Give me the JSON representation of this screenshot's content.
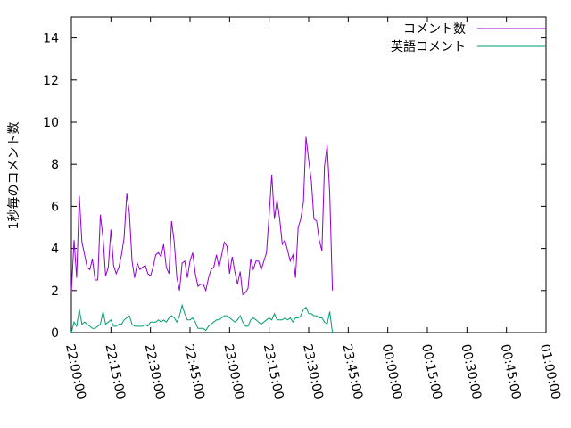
{
  "chart_data": {
    "type": "line",
    "title": "",
    "xlabel": "",
    "ylabel": "1秒毎のコメント数",
    "ylim": [
      0,
      15
    ],
    "xlim": [
      "22:00:00",
      "01:00:00"
    ],
    "grid": false,
    "legend_position": "top-right",
    "y_ticks": [
      "0",
      "2",
      "4",
      "6",
      "8",
      "10",
      "12",
      "14"
    ],
    "x_ticks": [
      "22:00:00",
      "22:15:00",
      "22:30:00",
      "22:45:00",
      "23:00:00",
      "23:15:00",
      "23:30:00",
      "23:45:00",
      "00:00:00",
      "00:15:00",
      "00:30:00",
      "00:45:00",
      "01:00:00"
    ],
    "series": [
      {
        "name": "コメント数",
        "color": "#9400d3",
        "points": [
          [
            "22:00:00",
            1.9
          ],
          [
            "22:01:00",
            4.4
          ],
          [
            "22:02:00",
            2.6
          ],
          [
            "22:03:00",
            6.5
          ],
          [
            "22:04:00",
            4.3
          ],
          [
            "22:05:00",
            3.7
          ],
          [
            "22:06:00",
            3.1
          ],
          [
            "22:07:00",
            3.0
          ],
          [
            "22:08:00",
            3.5
          ],
          [
            "22:09:00",
            2.5
          ],
          [
            "22:10:00",
            2.5
          ],
          [
            "22:11:00",
            5.6
          ],
          [
            "22:12:00",
            4.5
          ],
          [
            "22:13:00",
            2.7
          ],
          [
            "22:14:00",
            3.1
          ],
          [
            "22:15:00",
            4.9
          ],
          [
            "22:16:00",
            3.2
          ],
          [
            "22:17:00",
            2.8
          ],
          [
            "22:18:00",
            3.1
          ],
          [
            "22:19:00",
            3.7
          ],
          [
            "22:20:00",
            4.5
          ],
          [
            "22:21:00",
            6.6
          ],
          [
            "22:22:00",
            5.7
          ],
          [
            "22:23:00",
            3.4
          ],
          [
            "22:24:00",
            2.6
          ],
          [
            "22:25:00",
            3.3
          ],
          [
            "22:26:00",
            3.0
          ],
          [
            "22:27:00",
            3.1
          ],
          [
            "22:28:00",
            3.2
          ],
          [
            "22:29:00",
            2.8
          ],
          [
            "22:30:00",
            2.7
          ],
          [
            "22:31:00",
            3.1
          ],
          [
            "22:32:00",
            3.7
          ],
          [
            "22:33:00",
            3.8
          ],
          [
            "22:34:00",
            3.6
          ],
          [
            "22:35:00",
            4.2
          ],
          [
            "22:36:00",
            3.1
          ],
          [
            "22:37:00",
            2.8
          ],
          [
            "22:38:00",
            5.3
          ],
          [
            "22:39:00",
            4.3
          ],
          [
            "22:40:00",
            2.6
          ],
          [
            "22:41:00",
            2.0
          ],
          [
            "22:42:00",
            3.3
          ],
          [
            "22:43:00",
            3.4
          ],
          [
            "22:44:00",
            2.6
          ],
          [
            "22:45:00",
            3.4
          ],
          [
            "22:46:00",
            3.8
          ],
          [
            "22:47:00",
            2.8
          ],
          [
            "22:48:00",
            2.2
          ],
          [
            "22:49:00",
            2.3
          ],
          [
            "22:50:00",
            2.3
          ],
          [
            "22:51:00",
            2.0
          ],
          [
            "22:52:00",
            2.6
          ],
          [
            "22:53:00",
            3.0
          ],
          [
            "22:54:00",
            3.1
          ],
          [
            "22:55:00",
            3.7
          ],
          [
            "22:56:00",
            3.1
          ],
          [
            "22:57:00",
            3.7
          ],
          [
            "22:58:00",
            4.3
          ],
          [
            "22:59:00",
            4.1
          ],
          [
            "23:00:00",
            2.8
          ],
          [
            "23:01:00",
            3.6
          ],
          [
            "23:02:00",
            2.9
          ],
          [
            "23:03:00",
            2.3
          ],
          [
            "23:04:00",
            2.9
          ],
          [
            "23:05:00",
            1.8
          ],
          [
            "23:06:00",
            1.9
          ],
          [
            "23:07:00",
            2.1
          ],
          [
            "23:08:00",
            3.5
          ],
          [
            "23:09:00",
            3.0
          ],
          [
            "23:10:00",
            3.4
          ],
          [
            "23:11:00",
            3.4
          ],
          [
            "23:12:00",
            3.0
          ],
          [
            "23:13:00",
            3.4
          ],
          [
            "23:14:00",
            3.8
          ],
          [
            "23:15:00",
            5.6
          ],
          [
            "23:16:00",
            7.5
          ],
          [
            "23:17:00",
            5.4
          ],
          [
            "23:18:00",
            6.3
          ],
          [
            "23:19:00",
            5.4
          ],
          [
            "23:20:00",
            4.2
          ],
          [
            "23:21:00",
            4.4
          ],
          [
            "23:22:00",
            3.9
          ],
          [
            "23:23:00",
            3.4
          ],
          [
            "23:24:00",
            3.7
          ],
          [
            "23:25:00",
            2.6
          ],
          [
            "23:26:00",
            5.0
          ],
          [
            "23:27:00",
            5.4
          ],
          [
            "23:28:00",
            6.2
          ],
          [
            "23:29:00",
            9.3
          ],
          [
            "23:30:00",
            8.2
          ],
          [
            "23:31:00",
            7.2
          ],
          [
            "23:32:00",
            5.4
          ],
          [
            "23:33:00",
            5.3
          ],
          [
            "23:34:00",
            4.4
          ],
          [
            "23:35:00",
            3.9
          ],
          [
            "23:36:00",
            7.9
          ],
          [
            "23:37:00",
            8.9
          ],
          [
            "23:38:00",
            6.6
          ],
          [
            "23:39:00",
            2.0
          ]
        ]
      },
      {
        "name": "英語コメント",
        "color": "#009e73",
        "points": [
          [
            "22:00:00",
            0.0
          ],
          [
            "22:01:00",
            0.5
          ],
          [
            "22:02:00",
            0.3
          ],
          [
            "22:03:00",
            1.1
          ],
          [
            "22:04:00",
            0.4
          ],
          [
            "22:05:00",
            0.5
          ],
          [
            "22:06:00",
            0.4
          ],
          [
            "22:07:00",
            0.3
          ],
          [
            "22:08:00",
            0.2
          ],
          [
            "22:09:00",
            0.2
          ],
          [
            "22:10:00",
            0.3
          ],
          [
            "22:11:00",
            0.4
          ],
          [
            "22:12:00",
            1.0
          ],
          [
            "22:13:00",
            0.4
          ],
          [
            "22:14:00",
            0.5
          ],
          [
            "22:15:00",
            0.6
          ],
          [
            "22:16:00",
            0.3
          ],
          [
            "22:17:00",
            0.3
          ],
          [
            "22:18:00",
            0.4
          ],
          [
            "22:19:00",
            0.4
          ],
          [
            "22:20:00",
            0.6
          ],
          [
            "22:21:00",
            0.7
          ],
          [
            "22:22:00",
            0.8
          ],
          [
            "22:23:00",
            0.4
          ],
          [
            "22:24:00",
            0.3
          ],
          [
            "22:25:00",
            0.3
          ],
          [
            "22:26:00",
            0.3
          ],
          [
            "22:27:00",
            0.3
          ],
          [
            "22:28:00",
            0.4
          ],
          [
            "22:29:00",
            0.3
          ],
          [
            "22:30:00",
            0.5
          ],
          [
            "22:31:00",
            0.5
          ],
          [
            "22:32:00",
            0.5
          ],
          [
            "22:33:00",
            0.6
          ],
          [
            "22:34:00",
            0.5
          ],
          [
            "22:35:00",
            0.6
          ],
          [
            "22:36:00",
            0.5
          ],
          [
            "22:37:00",
            0.7
          ],
          [
            "22:38:00",
            0.8
          ],
          [
            "22:39:00",
            0.7
          ],
          [
            "22:40:00",
            0.5
          ],
          [
            "22:41:00",
            0.8
          ],
          [
            "22:42:00",
            1.3
          ],
          [
            "22:43:00",
            0.9
          ],
          [
            "22:44:00",
            0.6
          ],
          [
            "22:45:00",
            0.6
          ],
          [
            "22:46:00",
            0.7
          ],
          [
            "22:47:00",
            0.5
          ],
          [
            "22:48:00",
            0.2
          ],
          [
            "22:49:00",
            0.2
          ],
          [
            "22:50:00",
            0.2
          ],
          [
            "22:51:00",
            0.1
          ],
          [
            "22:52:00",
            0.3
          ],
          [
            "22:53:00",
            0.4
          ],
          [
            "22:54:00",
            0.5
          ],
          [
            "22:55:00",
            0.6
          ],
          [
            "22:56:00",
            0.6
          ],
          [
            "22:57:00",
            0.7
          ],
          [
            "22:58:00",
            0.8
          ],
          [
            "22:59:00",
            0.8
          ],
          [
            "23:00:00",
            0.7
          ],
          [
            "23:01:00",
            0.6
          ],
          [
            "23:02:00",
            0.5
          ],
          [
            "23:03:00",
            0.6
          ],
          [
            "23:04:00",
            0.8
          ],
          [
            "23:05:00",
            0.5
          ],
          [
            "23:06:00",
            0.3
          ],
          [
            "23:07:00",
            0.3
          ],
          [
            "23:08:00",
            0.6
          ],
          [
            "23:09:00",
            0.7
          ],
          [
            "23:10:00",
            0.6
          ],
          [
            "23:11:00",
            0.5
          ],
          [
            "23:12:00",
            0.4
          ],
          [
            "23:13:00",
            0.5
          ],
          [
            "23:14:00",
            0.6
          ],
          [
            "23:15:00",
            0.7
          ],
          [
            "23:16:00",
            0.6
          ],
          [
            "23:17:00",
            0.9
          ],
          [
            "23:18:00",
            0.6
          ],
          [
            "23:19:00",
            0.6
          ],
          [
            "23:20:00",
            0.6
          ],
          [
            "23:21:00",
            0.7
          ],
          [
            "23:22:00",
            0.6
          ],
          [
            "23:23:00",
            0.7
          ],
          [
            "23:24:00",
            0.5
          ],
          [
            "23:25:00",
            0.7
          ],
          [
            "23:26:00",
            0.7
          ],
          [
            "23:27:00",
            0.8
          ],
          [
            "23:28:00",
            1.1
          ],
          [
            "23:29:00",
            1.2
          ],
          [
            "23:30:00",
            0.9
          ],
          [
            "23:31:00",
            0.9
          ],
          [
            "23:32:00",
            0.8
          ],
          [
            "23:33:00",
            0.8
          ],
          [
            "23:34:00",
            0.7
          ],
          [
            "23:35:00",
            0.7
          ],
          [
            "23:36:00",
            0.5
          ],
          [
            "23:37:00",
            0.4
          ],
          [
            "23:38:00",
            1.0
          ],
          [
            "23:39:00",
            0.0
          ]
        ]
      }
    ]
  }
}
